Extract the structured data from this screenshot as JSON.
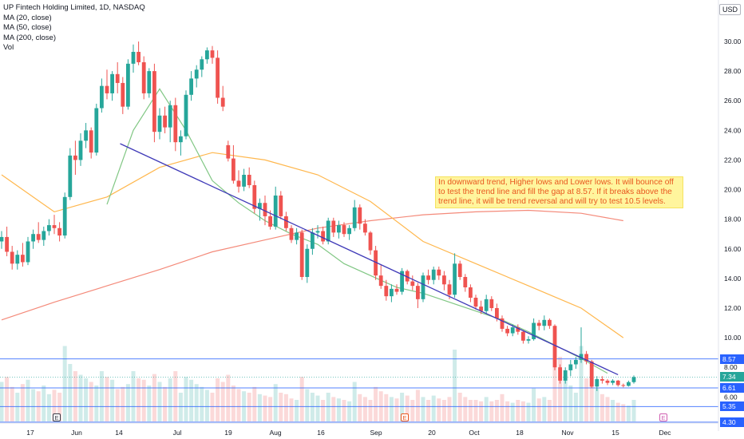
{
  "legend": {
    "title": "UP Fintech Holding Limited, 1D, NASDAQ",
    "ma20": "MA (20, close)",
    "ma50": "MA (50, close)",
    "ma200": "MA (200, close)",
    "vol": "Vol"
  },
  "currency": "USD",
  "annotation": "In downward trend, Higher lows and Lower lows. It will bounce off to test the trend line and fill the gap at 8.57. If it breaks above the trend line, it will be trend reversal and will try to test 10.5 levels.",
  "events": [
    {
      "label": "E",
      "date_label": "near May 24",
      "color": "#363a45"
    },
    {
      "label": "E",
      "date_label": "near Sep 8",
      "color": "#e8571f"
    },
    {
      "label": "E",
      "date_label": "near Nov 29",
      "color": "#d05eb0"
    }
  ],
  "price_labels": [
    {
      "value": "8.57",
      "color": "#2962ff"
    },
    {
      "value": "7.34",
      "color": "#26a69a"
    },
    {
      "value": "6.61",
      "color": "#2962ff"
    },
    {
      "value": "5.35",
      "color": "#2962ff"
    },
    {
      "value": "4.30",
      "color": "#2962ff"
    }
  ],
  "colors": {
    "up": "#26a69a",
    "down": "#ef5350",
    "ma20": "#81c784",
    "ma50": "#ffb74d",
    "ma200": "#f48a7a",
    "trendline": "#3f3ab8",
    "hline": "#2962ff"
  },
  "chart_data": {
    "type": "candlestick",
    "title": "UP Fintech Holding Limited, 1D, NASDAQ",
    "y_ticks": [
      "30.00",
      "28.00",
      "26.00",
      "24.00",
      "22.00",
      "20.00",
      "18.00",
      "16.00",
      "14.00",
      "12.00",
      "10.00",
      "8.00",
      "6.00"
    ],
    "x_ticks": [
      "17",
      "Jun",
      "14",
      "Jul",
      "19",
      "Aug",
      "16",
      "Sep",
      "20",
      "Oct",
      "18",
      "Nov",
      "15",
      "Dec"
    ],
    "ylim": [
      4.0,
      31.5
    ],
    "horizontal_levels": [
      8.57,
      6.61,
      5.35,
      4.3
    ],
    "last_price": 7.34,
    "trendline": [
      [
        22.5,
        23.1
      ],
      [
        117,
        7.5
      ]
    ],
    "candles": [
      [
        16.5,
        17.2,
        16.0,
        16.8
      ],
      [
        16.8,
        17.5,
        15.5,
        15.8
      ],
      [
        15.8,
        16.2,
        14.6,
        15.0
      ],
      [
        15.0,
        15.9,
        14.6,
        15.6
      ],
      [
        15.6,
        16.4,
        14.8,
        15.1
      ],
      [
        15.1,
        16.8,
        14.9,
        16.5
      ],
      [
        16.5,
        17.3,
        16.0,
        17.0
      ],
      [
        17.0,
        17.8,
        16.4,
        16.6
      ],
      [
        16.6,
        17.5,
        16.2,
        17.2
      ],
      [
        17.2,
        18.0,
        16.9,
        17.6
      ],
      [
        17.6,
        18.3,
        17.0,
        17.4
      ],
      [
        17.4,
        17.8,
        16.5,
        16.9
      ],
      [
        16.9,
        19.8,
        16.7,
        19.5
      ],
      [
        19.5,
        22.8,
        19.3,
        22.3
      ],
      [
        22.3,
        23.3,
        21.0,
        22.0
      ],
      [
        22.0,
        23.8,
        21.6,
        23.3
      ],
      [
        23.3,
        24.5,
        22.8,
        24.0
      ],
      [
        24.0,
        24.2,
        22.1,
        22.5
      ],
      [
        22.5,
        25.8,
        22.3,
        25.5
      ],
      [
        25.5,
        27.5,
        25.2,
        27.0
      ],
      [
        27.0,
        28.1,
        26.1,
        26.5
      ],
      [
        26.5,
        28.0,
        26.0,
        27.8
      ],
      [
        27.8,
        28.6,
        26.5,
        27.2
      ],
      [
        27.2,
        27.6,
        25.1,
        25.6
      ],
      [
        25.6,
        28.8,
        25.4,
        28.5
      ],
      [
        28.5,
        29.8,
        27.9,
        29.3
      ],
      [
        29.3,
        30.0,
        28.4,
        28.6
      ],
      [
        28.6,
        29.0,
        26.1,
        26.5
      ],
      [
        26.5,
        28.2,
        26.2,
        28.0
      ],
      [
        28.0,
        28.5,
        23.2,
        23.9
      ],
      [
        23.9,
        25.5,
        23.4,
        25.0
      ],
      [
        25.0,
        25.6,
        23.8,
        24.2
      ],
      [
        24.2,
        26.0,
        23.2,
        25.7
      ],
      [
        25.7,
        26.2,
        22.6,
        23.2
      ],
      [
        23.2,
        24.0,
        22.3,
        23.6
      ],
      [
        23.6,
        26.7,
        23.4,
        26.4
      ],
      [
        26.4,
        28.0,
        26.0,
        27.5
      ],
      [
        27.5,
        28.4,
        26.9,
        28.1
      ],
      [
        28.1,
        29.0,
        27.6,
        28.8
      ],
      [
        28.8,
        29.6,
        28.5,
        29.4
      ],
      [
        29.4,
        29.7,
        28.5,
        28.9
      ],
      [
        28.9,
        29.4,
        25.8,
        26.2
      ],
      [
        26.2,
        27.0,
        25.3,
        25.6
      ],
      [
        23.0,
        23.3,
        21.9,
        22.1
      ],
      [
        22.1,
        23.0,
        20.4,
        20.6
      ],
      [
        20.6,
        21.3,
        19.8,
        20.2
      ],
      [
        20.2,
        21.4,
        19.9,
        21.0
      ],
      [
        21.0,
        21.5,
        20.1,
        20.3
      ],
      [
        20.3,
        20.6,
        18.4,
        18.7
      ],
      [
        18.7,
        19.4,
        17.9,
        19.1
      ],
      [
        19.1,
        19.6,
        17.6,
        18.2
      ],
      [
        18.2,
        18.6,
        17.3,
        17.5
      ],
      [
        17.5,
        20.2,
        17.3,
        19.6
      ],
      [
        19.6,
        19.9,
        18.0,
        18.2
      ],
      [
        18.2,
        18.5,
        17.2,
        17.4
      ],
      [
        17.4,
        17.6,
        16.4,
        16.6
      ],
      [
        16.6,
        17.4,
        16.3,
        17.1
      ],
      [
        17.1,
        17.3,
        13.9,
        14.1
      ],
      [
        14.1,
        16.3,
        13.7,
        16.0
      ],
      [
        16.0,
        17.4,
        15.6,
        17.1
      ],
      [
        17.1,
        17.6,
        16.7,
        17.2
      ],
      [
        17.2,
        17.5,
        16.3,
        16.5
      ],
      [
        16.5,
        18.1,
        16.3,
        17.9
      ],
      [
        17.9,
        18.1,
        16.8,
        17.1
      ],
      [
        17.1,
        17.9,
        16.7,
        17.6
      ],
      [
        17.6,
        17.8,
        16.8,
        17.0
      ],
      [
        17.0,
        17.6,
        16.6,
        17.4
      ],
      [
        17.4,
        19.3,
        17.2,
        18.8
      ],
      [
        18.8,
        19.0,
        17.3,
        17.7
      ],
      [
        17.7,
        18.0,
        16.9,
        17.1
      ],
      [
        17.1,
        17.2,
        15.6,
        15.9
      ],
      [
        15.9,
        16.2,
        13.9,
        14.2
      ],
      [
        14.2,
        14.9,
        13.3,
        13.5
      ],
      [
        13.5,
        13.9,
        12.5,
        12.8
      ],
      [
        12.8,
        13.6,
        12.4,
        13.3
      ],
      [
        13.3,
        13.6,
        12.9,
        13.1
      ],
      [
        13.1,
        14.7,
        12.9,
        14.5
      ],
      [
        14.5,
        14.6,
        13.6,
        13.8
      ],
      [
        13.8,
        14.2,
        13.2,
        13.5
      ],
      [
        13.5,
        13.7,
        12.0,
        12.6
      ],
      [
        12.6,
        14.4,
        12.4,
        14.2
      ],
      [
        14.2,
        14.6,
        13.6,
        13.9
      ],
      [
        13.9,
        14.8,
        13.6,
        14.6
      ],
      [
        14.6,
        14.8,
        13.9,
        14.2
      ],
      [
        14.2,
        14.5,
        13.2,
        13.6
      ],
      [
        13.6,
        13.9,
        12.6,
        12.9
      ],
      [
        12.9,
        15.7,
        12.7,
        15.0
      ],
      [
        15.0,
        15.2,
        13.9,
        14.1
      ],
      [
        14.1,
        14.3,
        13.1,
        13.4
      ],
      [
        13.4,
        13.6,
        12.4,
        12.7
      ],
      [
        12.7,
        12.9,
        11.9,
        12.1
      ],
      [
        12.1,
        12.5,
        11.6,
        11.8
      ],
      [
        11.8,
        12.9,
        11.6,
        12.6
      ],
      [
        12.6,
        12.8,
        11.8,
        12.0
      ],
      [
        12.0,
        12.3,
        11.1,
        11.3
      ],
      [
        11.3,
        11.5,
        10.4,
        10.6
      ],
      [
        10.6,
        10.8,
        10.1,
        10.3
      ],
      [
        10.3,
        10.9,
        10.1,
        10.7
      ],
      [
        10.7,
        10.9,
        10.2,
        10.4
      ],
      [
        10.4,
        10.5,
        9.6,
        9.8
      ],
      [
        9.8,
        10.1,
        9.6,
        9.9
      ],
      [
        9.9,
        11.3,
        9.8,
        11.0
      ],
      [
        11.0,
        11.2,
        10.5,
        10.8
      ],
      [
        10.8,
        11.5,
        10.5,
        11.2
      ],
      [
        11.2,
        11.3,
        10.6,
        10.8
      ],
      [
        10.8,
        10.9,
        7.8,
        8.0
      ],
      [
        8.0,
        8.2,
        6.9,
        7.1
      ],
      [
        7.1,
        8.0,
        6.9,
        7.8
      ],
      [
        7.8,
        8.5,
        7.4,
        8.2
      ],
      [
        8.2,
        8.7,
        7.9,
        8.5
      ],
      [
        8.5,
        10.7,
        8.3,
        8.9
      ],
      [
        8.9,
        9.1,
        8.2,
        8.4
      ],
      [
        8.4,
        8.5,
        6.6,
        6.7
      ],
      [
        6.7,
        7.4,
        6.4,
        7.2
      ],
      [
        7.2,
        7.4,
        6.9,
        7.1
      ],
      [
        7.1,
        7.2,
        6.8,
        6.95
      ],
      [
        6.95,
        7.2,
        6.8,
        7.1
      ],
      [
        7.1,
        7.15,
        6.7,
        6.8
      ],
      [
        6.8,
        6.9,
        6.65,
        6.75
      ],
      [
        6.75,
        7.1,
        6.7,
        7.0
      ],
      [
        7.0,
        7.45,
        6.9,
        7.34
      ]
    ],
    "ma20_x": [
      20,
      25,
      30,
      35,
      40,
      45,
      50,
      55,
      60,
      65,
      70,
      75,
      80,
      85,
      90,
      95,
      100,
      105,
      110,
      115
    ],
    "ma20": [
      19.0,
      24.0,
      26.8,
      24.0,
      20.6,
      19.1,
      17.9,
      17.0,
      16.3,
      15.0,
      14.2,
      13.4,
      13.0,
      12.4,
      11.8,
      11.2,
      10.4,
      9.5,
      8.6,
      7.6
    ],
    "ma50_x": [
      0,
      10,
      20,
      30,
      40,
      50,
      60,
      70,
      80,
      90,
      100,
      110,
      118
    ],
    "ma50": [
      21.0,
      18.5,
      19.5,
      21.5,
      22.5,
      22.0,
      21.0,
      19.2,
      16.5,
      15.0,
      13.5,
      12.0,
      10.0
    ],
    "ma200_x": [
      0,
      10,
      20,
      30,
      40,
      50,
      60,
      70,
      80,
      90,
      100,
      110,
      118
    ],
    "ma200": [
      11.2,
      12.4,
      13.5,
      14.6,
      15.8,
      16.6,
      17.4,
      17.9,
      18.3,
      18.5,
      18.6,
      18.4,
      17.9
    ],
    "volume": [
      55,
      62,
      48,
      40,
      52,
      58,
      45,
      42,
      50,
      38,
      44,
      40,
      105,
      80,
      70,
      65,
      60,
      55,
      50,
      70,
      62,
      58,
      45,
      48,
      52,
      70,
      60,
      58,
      50,
      66,
      55,
      48,
      60,
      70,
      40,
      62,
      58,
      52,
      48,
      44,
      40,
      60,
      55,
      65,
      50,
      45,
      42,
      40,
      48,
      38,
      36,
      34,
      52,
      40,
      38,
      32,
      30,
      62,
      45,
      40,
      36,
      30,
      40,
      34,
      32,
      30,
      28,
      55,
      38,
      34,
      30,
      48,
      42,
      38,
      34,
      32,
      40,
      36,
      30,
      44,
      34,
      30,
      36,
      32,
      30,
      34,
      100,
      40,
      34,
      30,
      30,
      28,
      34,
      28,
      30,
      38,
      28,
      26,
      30,
      28,
      26,
      46,
      32,
      34,
      30,
      100,
      90,
      60,
      50,
      40,
      105,
      60,
      62,
      46,
      38,
      34,
      30,
      26,
      24,
      22,
      30
    ]
  }
}
